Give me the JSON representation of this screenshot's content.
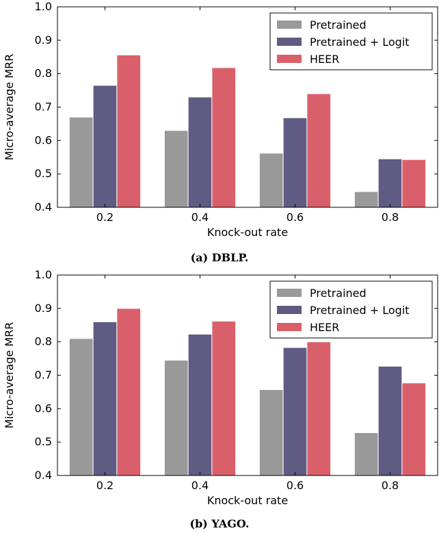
{
  "chart_data": [
    {
      "type": "bar",
      "caption": "(a) DBLP.",
      "xlabel": "Knock-out rate",
      "ylabel": "Micro-average MRR",
      "categories": [
        "0.2",
        "0.4",
        "0.6",
        "0.8"
      ],
      "ylim": [
        0.4,
        1.0
      ],
      "yticks": [
        "0.4",
        "0.5",
        "0.6",
        "0.7",
        "0.8",
        "0.9",
        "1.0"
      ],
      "legend_position": "top-right",
      "grid": false,
      "series": [
        {
          "name": "Pretrained",
          "color": "#999999",
          "values": [
            0.67,
            0.63,
            0.562,
            0.447
          ]
        },
        {
          "name": "Pretrained + Logit",
          "color": "#5f5b82",
          "values": [
            0.765,
            0.73,
            0.668,
            0.545
          ]
        },
        {
          "name": "HEER",
          "color": "#d9606a",
          "values": [
            0.856,
            0.818,
            0.74,
            0.543
          ]
        }
      ]
    },
    {
      "type": "bar",
      "caption": "(b) YAGO.",
      "xlabel": "Knock-out rate",
      "ylabel": "Micro-average MRR",
      "categories": [
        "0.2",
        "0.4",
        "0.6",
        "0.8"
      ],
      "ylim": [
        0.4,
        1.0
      ],
      "yticks": [
        "0.4",
        "0.5",
        "0.6",
        "0.7",
        "0.8",
        "0.9",
        "1.0"
      ],
      "legend_position": "top-right",
      "grid": false,
      "series": [
        {
          "name": "Pretrained",
          "color": "#999999",
          "values": [
            0.81,
            0.745,
            0.657,
            0.528
          ]
        },
        {
          "name": "Pretrained + Logit",
          "color": "#5f5b82",
          "values": [
            0.86,
            0.823,
            0.783,
            0.727
          ]
        },
        {
          "name": "HEER",
          "color": "#d9606a",
          "values": [
            0.9,
            0.862,
            0.8,
            0.677
          ]
        }
      ]
    }
  ]
}
